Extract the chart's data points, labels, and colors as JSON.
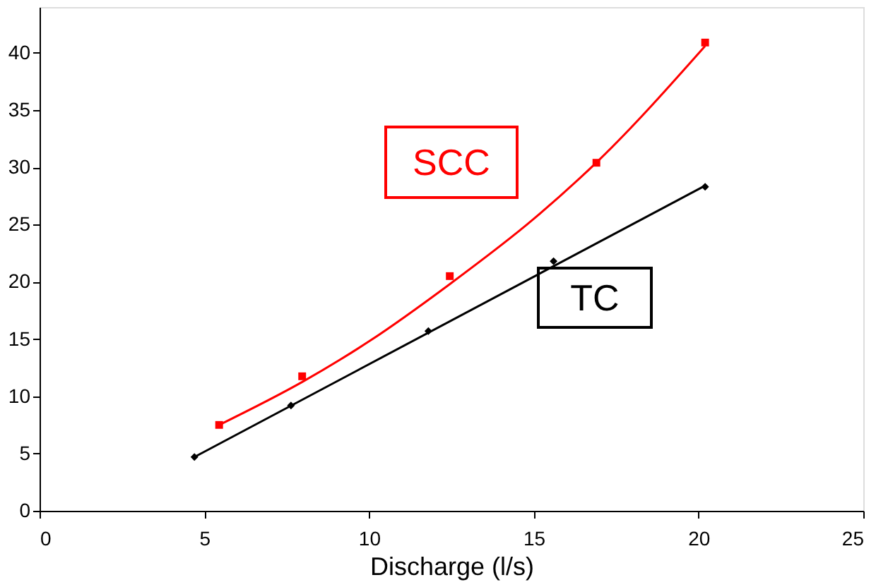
{
  "chart_data": {
    "type": "scatter",
    "xlabel": "Discharge (l/s)",
    "xlim": [
      0,
      25
    ],
    "xticks": [
      0,
      5,
      10,
      15,
      20,
      25
    ],
    "ylim": [
      0,
      44
    ],
    "yticks": [
      0,
      5,
      10,
      15,
      20,
      25,
      30,
      35,
      40
    ],
    "series": [
      {
        "name": "SCC",
        "marker": "square",
        "color": "#ff0000",
        "x": [
          5.45,
          7.97,
          12.45,
          16.9,
          20.2
        ],
        "values": [
          7.5,
          11.75,
          20.5,
          30.4,
          40.9
        ]
      },
      {
        "name": "TC",
        "marker": "diamond",
        "color": "#000000",
        "x": [
          4.7,
          7.63,
          11.8,
          15.6,
          20.2
        ],
        "values": [
          4.7,
          9.2,
          15.7,
          21.8,
          28.3
        ]
      },
      {
        "type": "line",
        "marker": "none",
        "line_style": "solid",
        "color": "#ff0000",
        "x": [
          5.45,
          8,
          10,
          12.45,
          15,
          17,
          20.2
        ],
        "values": [
          7.5,
          11.3,
          14.8,
          19.8,
          25.5,
          30.7,
          40.6
        ]
      },
      {
        "type": "line",
        "marker": "none",
        "line_style": "solid",
        "color": "#000000",
        "x": [
          4.7,
          20.2
        ],
        "values": [
          4.7,
          28.4
        ]
      }
    ]
  }
}
